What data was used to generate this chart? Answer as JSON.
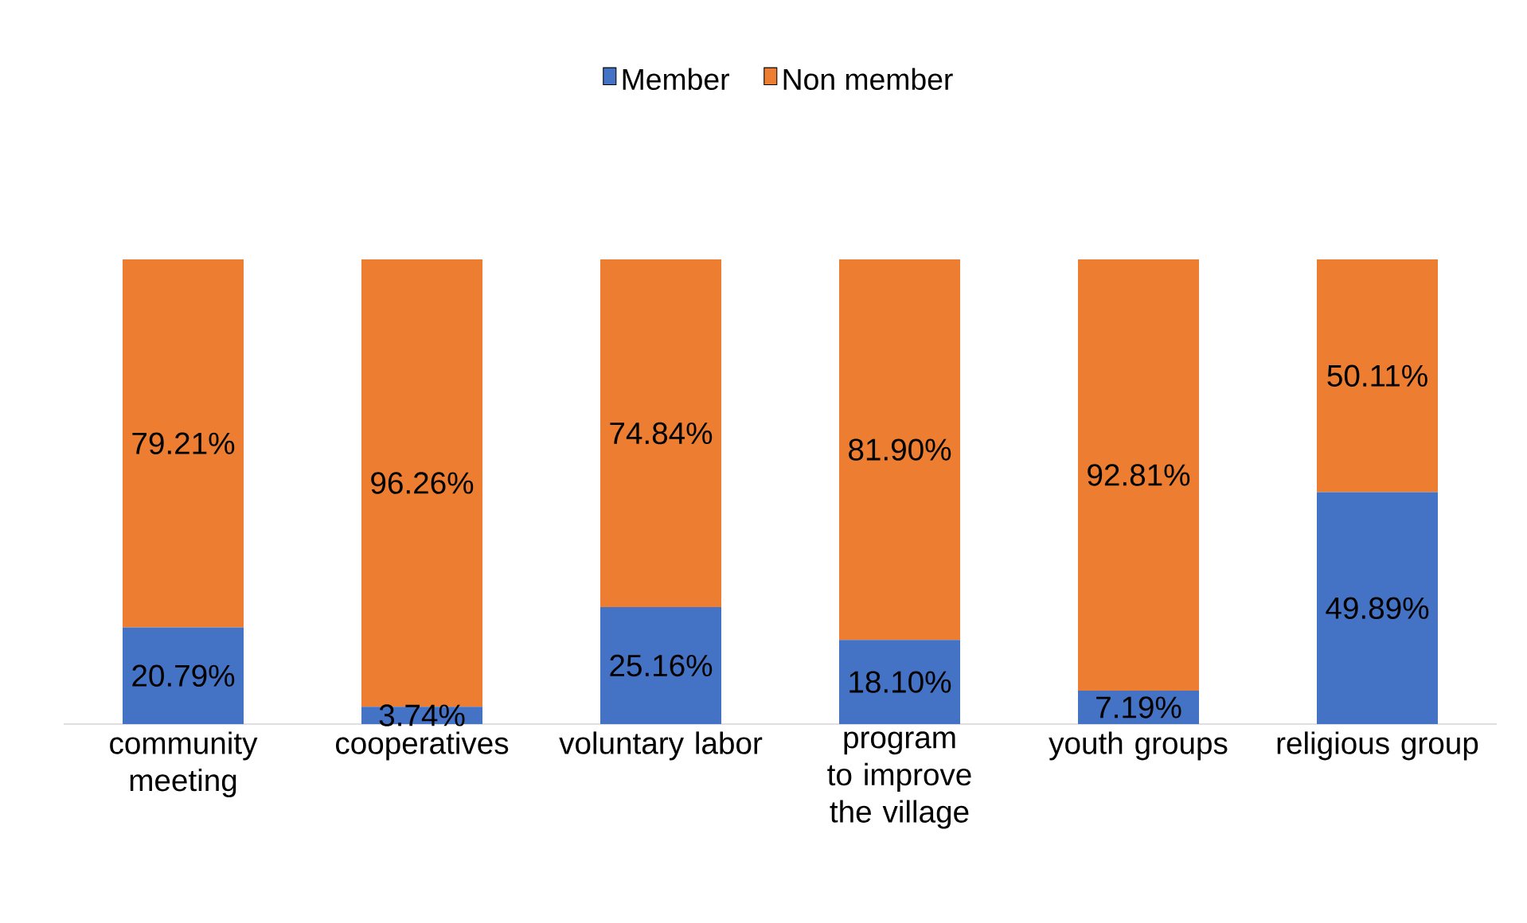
{
  "chart_data": {
    "type": "bar",
    "stacked": true,
    "legend": "top",
    "categories": [
      "community meeting",
      "cooperatives",
      "voluntary labor",
      "program to improve the village",
      "youth groups",
      "religious group"
    ],
    "series": [
      {
        "name": "Member",
        "color": "#4472c4",
        "values": [
          20.79,
          3.74,
          25.16,
          18.1,
          7.19,
          49.89
        ],
        "value_labels": [
          "20.79%",
          "3.74%",
          "25.16%",
          "18.10%",
          "7.19%",
          "49.89%"
        ]
      },
      {
        "name": "Non member",
        "color": "#ed7d31",
        "values": [
          79.21,
          96.26,
          74.84,
          81.9,
          92.81,
          50.11
        ],
        "value_labels": [
          "79.21%",
          "96.26%",
          "74.84%",
          "81.90%",
          "92.81%",
          "50.11%"
        ]
      }
    ]
  }
}
